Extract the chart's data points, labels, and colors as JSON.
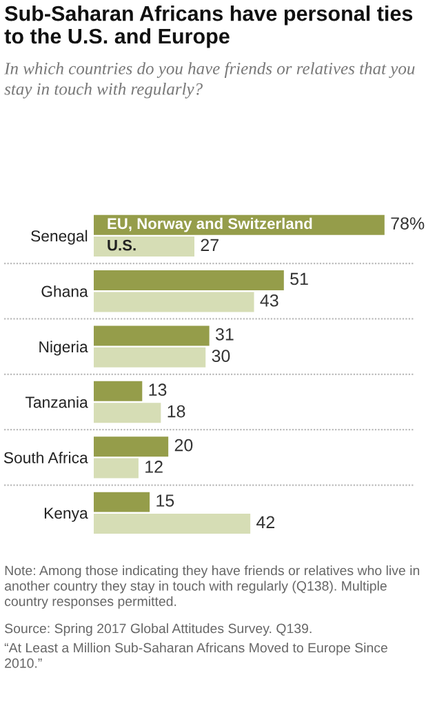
{
  "chart_data": {
    "type": "bar",
    "orientation": "horizontal",
    "title": "Sub-Saharan Africans have personal ties to the U.S. and Europe",
    "subtitle": "In which countries do you have friends or relatives that you stay in touch with regularly?",
    "categories": [
      "Senegal",
      "Ghana",
      "Nigeria",
      "Tanzania",
      "South Africa",
      "Kenya"
    ],
    "series": [
      {
        "name": "EU, Norway and Switzerland",
        "color": "#959d4a",
        "values": [
          78,
          51,
          31,
          13,
          20,
          15
        ],
        "value_labels": [
          "78%",
          "51",
          "31",
          "13",
          "20",
          "15"
        ]
      },
      {
        "name": "U.S.",
        "color": "#d6ddb5",
        "values": [
          27,
          43,
          30,
          18,
          12,
          42
        ],
        "value_labels": [
          "27",
          "43",
          "30",
          "18",
          "12",
          "42"
        ]
      }
    ],
    "tick_labels": "y",
    "legend": false,
    "grid": false,
    "annotations": [
      "Note: Among those indicating they have friends or relatives who live in another country they stay in touch with regularly (Q138). Multiple country responses permitted.",
      "Source: Spring 2017 Global Attitudes Survey. Q139.",
      "“At Least a Million Sub-Saharan Africans Moved to Europe Since 2010.”"
    ]
  }
}
